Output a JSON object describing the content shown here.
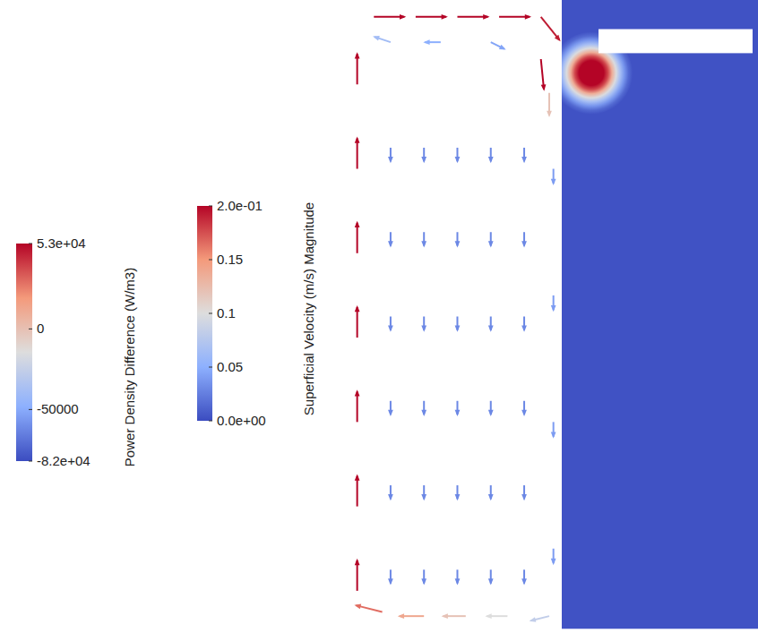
{
  "chart_data": {
    "type": "vector_field",
    "tick_labels": false,
    "xlim": [
      0,
      100
    ],
    "ylim": [
      0,
      150
    ],
    "power_density": {
      "title": "Power Density Difference (W/m3)",
      "colorbar": {
        "range": [
          -82000,
          53000
        ],
        "ticks": [
          {
            "value": 53000,
            "label": "5.3e+04"
          },
          0,
          -50000,
          {
            "value": -82000,
            "label": "-8.2e+04"
          }
        ]
      },
      "region": {
        "x": [
          53,
          100
        ],
        "y": [
          1,
          150
        ]
      },
      "background": -80000,
      "void": {
        "x": [
          61.8,
          98.7
        ],
        "y": [
          137.4,
          143.1
        ]
      },
      "hot_spots": [
        {
          "x": 60.1,
          "y": 132.7,
          "radius": 4.5,
          "value": 53000
        }
      ]
    },
    "velocity": {
      "title": "Superficial Velocity (m/s) Magnitude",
      "colorbar": {
        "range": [
          0,
          0.2
        ],
        "ticks": [
          {
            "value": 0.2,
            "label": "2.0e-01"
          },
          0.15,
          0.1,
          0.05,
          {
            "value": 0,
            "label": "0.0e+00"
          }
        ]
      },
      "vectors": [
        [
          4,
          10,
          0,
          0.2
        ],
        [
          4,
          30,
          0,
          0.2
        ],
        [
          4,
          50,
          0,
          0.2
        ],
        [
          4,
          70,
          0,
          0.2
        ],
        [
          4,
          90,
          0,
          0.2
        ],
        [
          4,
          110,
          0,
          0.2
        ],
        [
          4,
          130,
          0,
          0.2
        ],
        [
          8,
          146,
          0.2,
          0
        ],
        [
          18,
          146,
          0.2,
          0
        ],
        [
          28,
          146,
          0.2,
          0
        ],
        [
          38,
          146,
          0.2,
          0
        ],
        [
          48,
          146,
          0.12,
          -0.15
        ],
        [
          48,
          136,
          0.02,
          -0.2
        ],
        [
          50,
          128,
          0,
          -0.12
        ],
        [
          12,
          140,
          -0.06,
          0.02
        ],
        [
          24,
          140,
          -0.05,
          0
        ],
        [
          36,
          140,
          0.04,
          -0.02
        ],
        [
          12,
          15,
          0,
          -0.03
        ],
        [
          20,
          15,
          0,
          -0.03
        ],
        [
          28,
          15,
          0,
          -0.03
        ],
        [
          36,
          15,
          0,
          -0.03
        ],
        [
          44,
          15,
          0,
          -0.03
        ],
        [
          12,
          35,
          0,
          -0.03
        ],
        [
          20,
          35,
          0,
          -0.03
        ],
        [
          28,
          35,
          0,
          -0.03
        ],
        [
          36,
          35,
          0,
          -0.03
        ],
        [
          44,
          35,
          0,
          -0.03
        ],
        [
          12,
          55,
          0,
          -0.03
        ],
        [
          20,
          55,
          0,
          -0.03
        ],
        [
          28,
          55,
          0,
          -0.03
        ],
        [
          36,
          55,
          0,
          -0.03
        ],
        [
          44,
          55,
          0,
          -0.03
        ],
        [
          12,
          75,
          0,
          -0.03
        ],
        [
          20,
          75,
          0,
          -0.03
        ],
        [
          28,
          75,
          0,
          -0.03
        ],
        [
          36,
          75,
          0,
          -0.03
        ],
        [
          44,
          75,
          0,
          -0.03
        ],
        [
          12,
          95,
          0,
          -0.03
        ],
        [
          20,
          95,
          0,
          -0.03
        ],
        [
          28,
          95,
          0,
          -0.03
        ],
        [
          36,
          95,
          0,
          -0.03
        ],
        [
          44,
          95,
          0,
          -0.03
        ],
        [
          12,
          115,
          0,
          -0.03
        ],
        [
          20,
          115,
          0,
          -0.03
        ],
        [
          28,
          115,
          0,
          -0.03
        ],
        [
          36,
          115,
          0,
          -0.03
        ],
        [
          44,
          115,
          0,
          -0.03
        ],
        [
          51,
          20,
          0,
          -0.04
        ],
        [
          51,
          50,
          0,
          -0.04
        ],
        [
          51,
          80,
          0,
          -0.04
        ],
        [
          51,
          110,
          0,
          -0.04
        ],
        [
          50,
          4,
          -0.08,
          -0.02
        ],
        [
          40,
          4,
          -0.1,
          0
        ],
        [
          30,
          4,
          -0.12,
          0
        ],
        [
          20,
          4,
          -0.14,
          0
        ],
        [
          10,
          5,
          -0.16,
          0.04
        ]
      ]
    }
  }
}
